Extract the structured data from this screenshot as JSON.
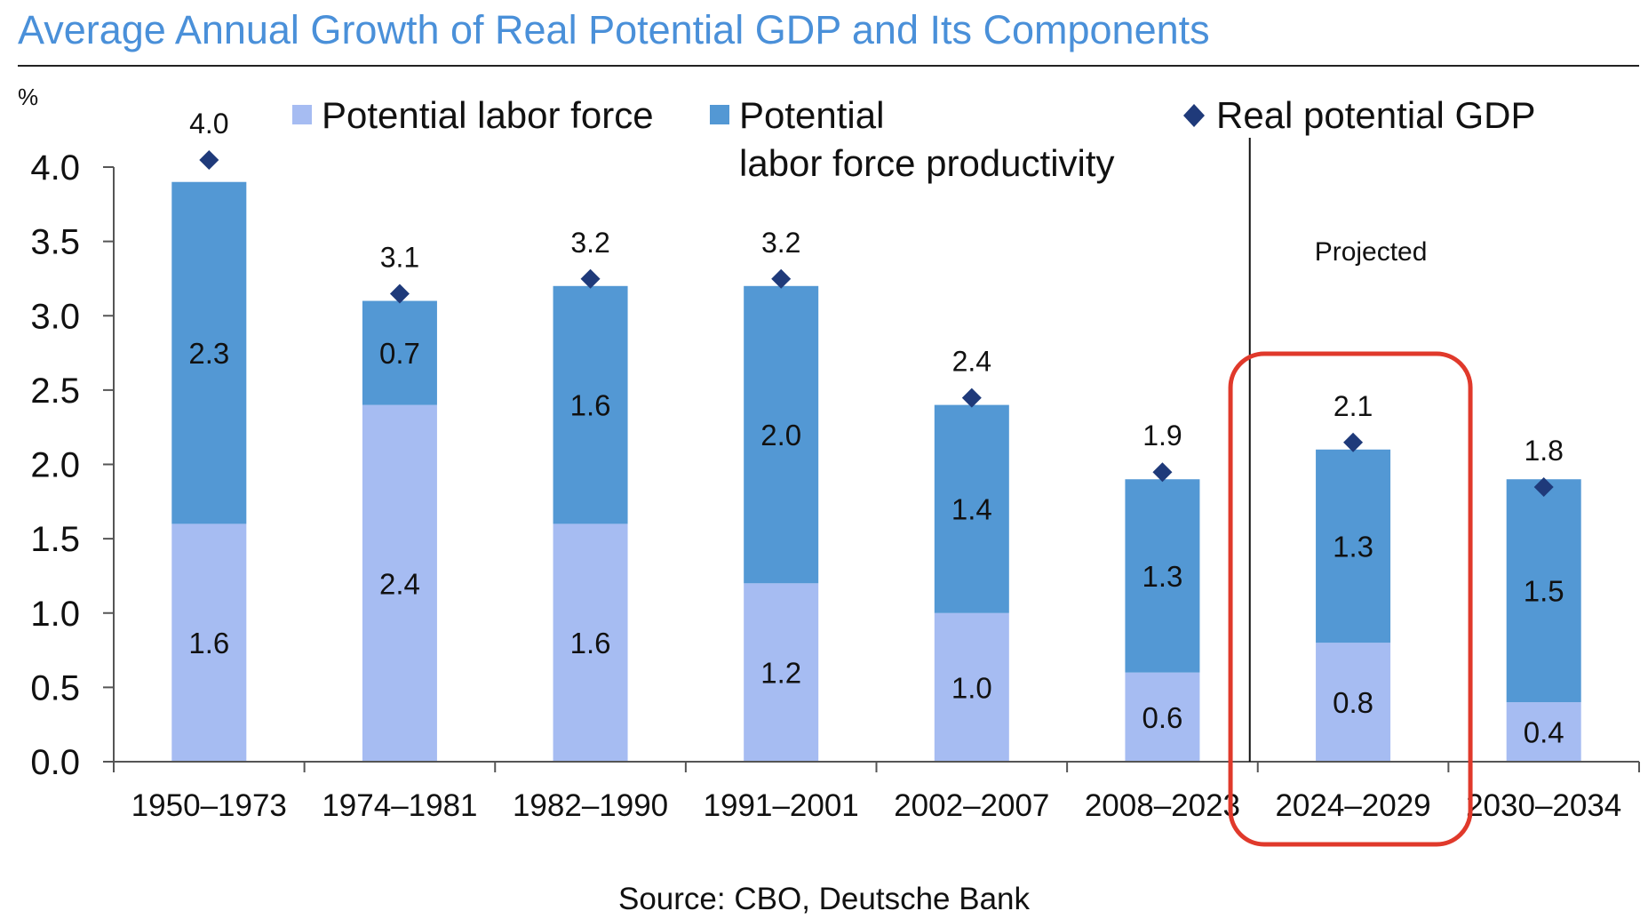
{
  "title": "Average Annual Growth of Real Potential GDP and Its Components",
  "source": "Source: CBO, Deutsche Bank",
  "colors": {
    "labor": "#a6bcf2",
    "productivity": "#5398d4",
    "gdp": "#1f3a7a",
    "title": "#4a90d9",
    "highlight": "#e0392b"
  },
  "chart_data": {
    "type": "bar",
    "stacked": true,
    "ylabel": "%",
    "ylim": [
      0,
      4.0
    ],
    "yticks": [
      "0.0",
      "0.5",
      "1.0",
      "1.5",
      "2.0",
      "2.5",
      "3.0",
      "3.5",
      "4.0"
    ],
    "categories": [
      "1950–1973",
      "1974–1981",
      "1982–1990",
      "1991–2001",
      "2002–2007",
      "2008–2023",
      "2024–2029",
      "2030–2034"
    ],
    "series": [
      {
        "name": "Potential labor force",
        "values": [
          1.6,
          2.4,
          1.6,
          1.2,
          1.0,
          0.6,
          0.8,
          0.4
        ],
        "labels": [
          "1.6",
          "2.4",
          "1.6",
          "1.2",
          "1.0",
          "0.6",
          "0.8",
          "0.4"
        ]
      },
      {
        "name": "Potential labor force productivity",
        "values": [
          2.3,
          0.7,
          1.6,
          2.0,
          1.4,
          1.3,
          1.3,
          1.5
        ],
        "labels": [
          "2.3",
          "0.7",
          "1.6",
          "2.0",
          "1.4",
          "1.3",
          "1.3",
          "1.5"
        ]
      }
    ],
    "markers": {
      "name": "Real potential GDP",
      "values": [
        4.0,
        3.1,
        3.2,
        3.2,
        2.4,
        1.9,
        2.1,
        1.8
      ],
      "labels": [
        "4.0",
        "3.1",
        "3.2",
        "3.2",
        "2.4",
        "1.9",
        "2.1",
        "1.8"
      ]
    },
    "legend": {
      "labor": "Potential labor force",
      "productivity_line1": "Potential",
      "productivity_line2": "labor force productivity",
      "gdp": "Real potential GDP"
    },
    "annotations": {
      "projected": "Projected",
      "projected_start_index": 6,
      "highlighted_index": 6
    }
  }
}
